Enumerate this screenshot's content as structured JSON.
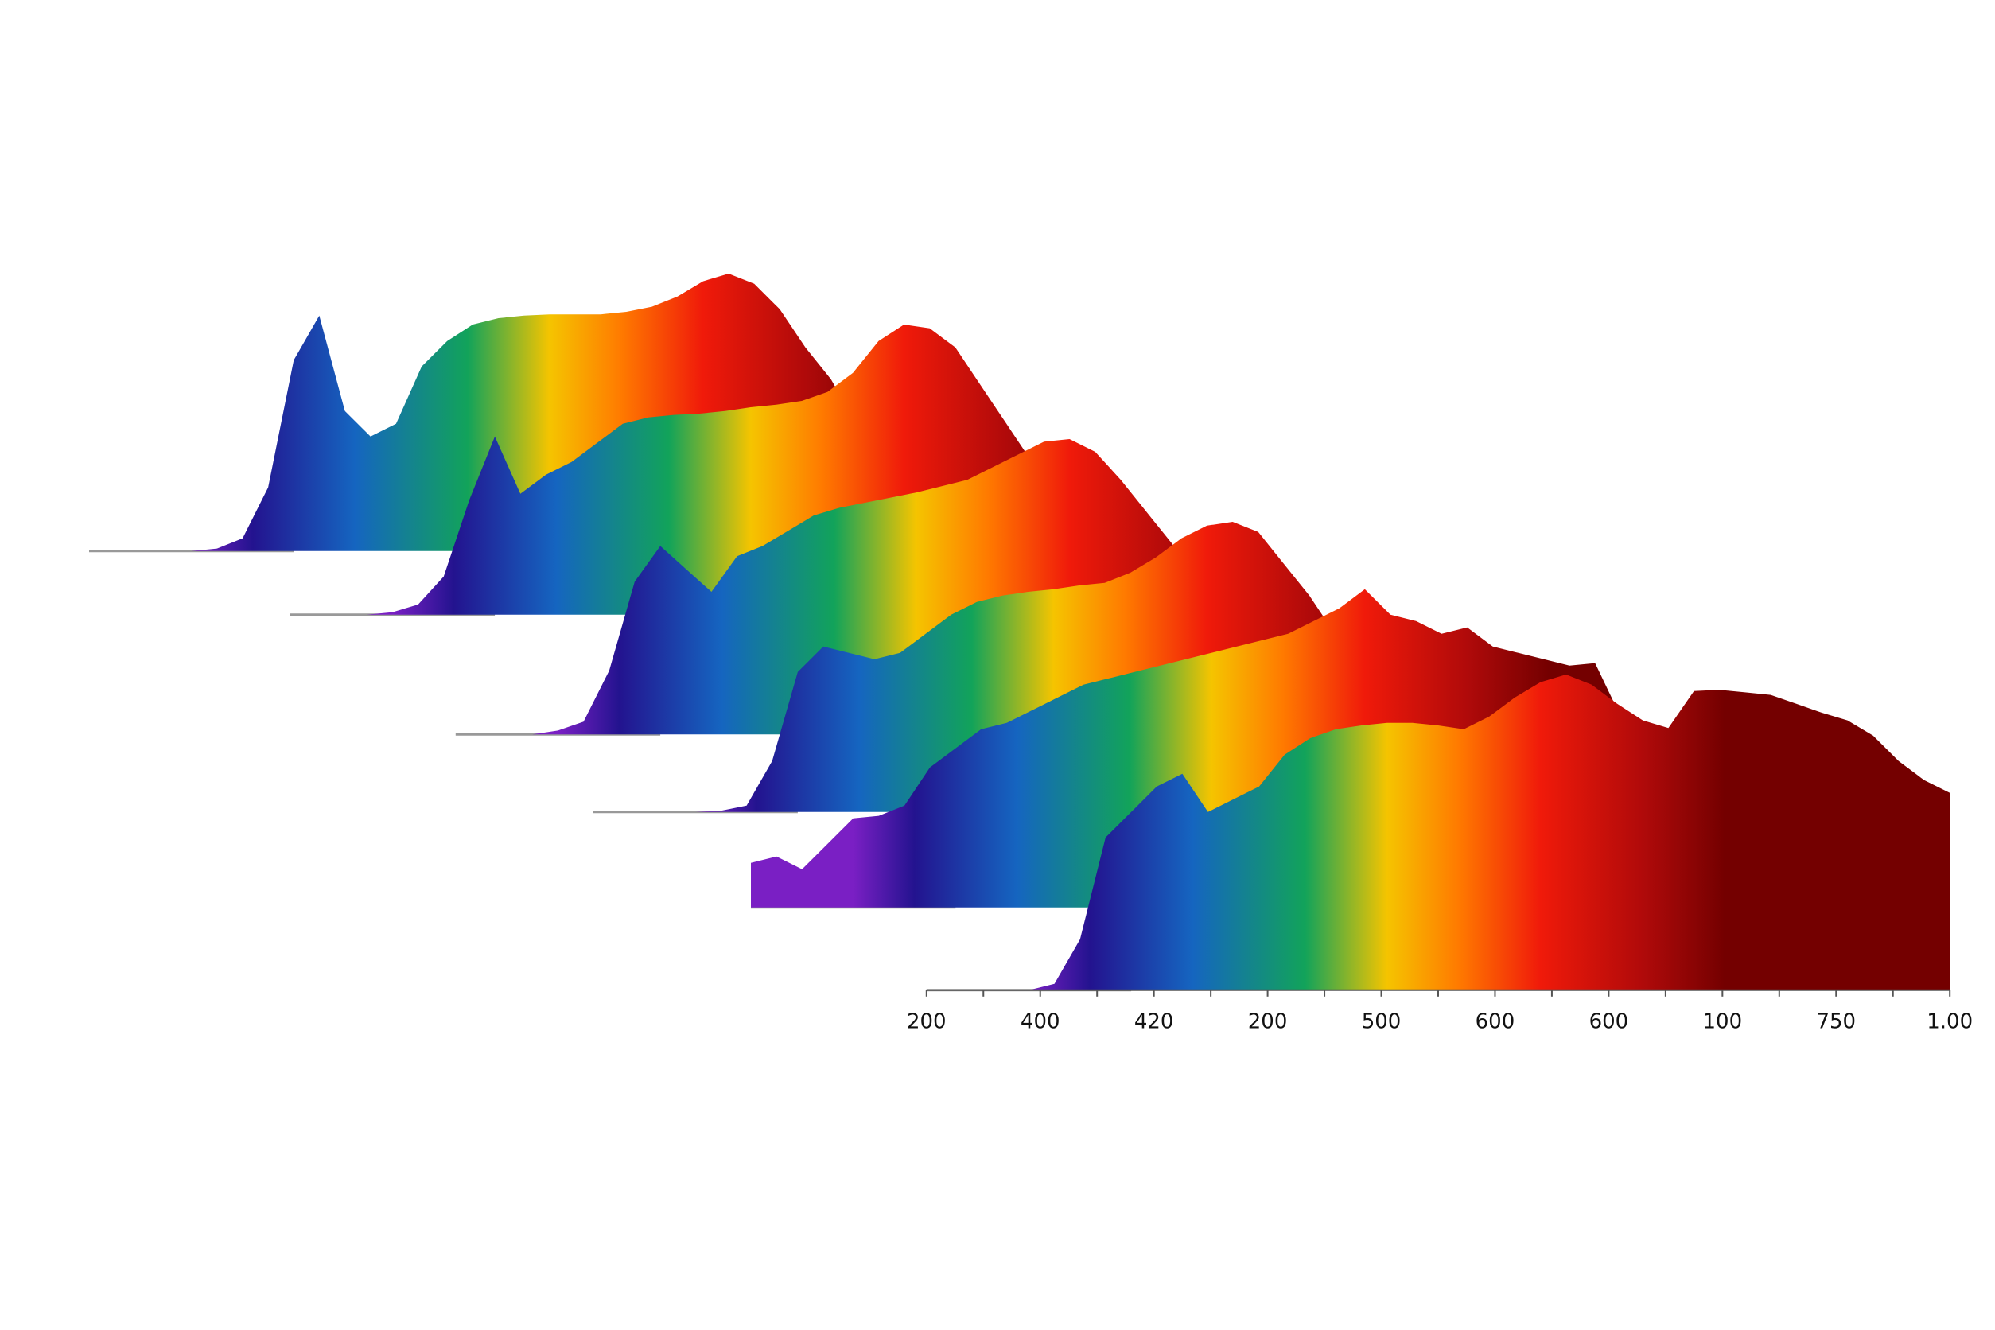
{
  "chart_data": {
    "type": "ridgeline",
    "x_tick_labels": [
      "200",
      "400",
      "420",
      "200",
      "500",
      "600",
      "600",
      "100",
      "750",
      "1.00"
    ],
    "color_stops": [
      "#7a1fc4",
      "#23138f",
      "#1565c0",
      "#12a35a",
      "#f5c400",
      "#ff7a00",
      "#f01a0a",
      "#b00a0a",
      "#740000"
    ],
    "series": [
      {
        "values": [
          0,
          0,
          0,
          0,
          0,
          2,
          10,
          50,
          150,
          185,
          110,
          90,
          100,
          145,
          165,
          178,
          183,
          185,
          186,
          186,
          186,
          188,
          192,
          200,
          212,
          218,
          210,
          190,
          160,
          135,
          100,
          70,
          40,
          20,
          8,
          2,
          0,
          0,
          0,
          0,
          0
        ]
      },
      {
        "values": [
          0,
          0,
          0,
          0,
          2,
          8,
          30,
          90,
          140,
          95,
          110,
          120,
          135,
          150,
          155,
          157,
          158,
          160,
          163,
          165,
          168,
          175,
          190,
          215,
          228,
          225,
          210,
          180,
          150,
          120,
          90,
          60,
          35,
          15,
          5,
          1,
          0,
          0,
          0,
          0,
          0
        ]
      },
      {
        "values": [
          0,
          0,
          0,
          0,
          3,
          10,
          50,
          120,
          148,
          130,
          112,
          140,
          148,
          160,
          172,
          178,
          182,
          186,
          190,
          195,
          200,
          210,
          220,
          230,
          232,
          222,
          200,
          175,
          150,
          120,
          90,
          60,
          35,
          15,
          5,
          1,
          0,
          0,
          0,
          0,
          0
        ]
      },
      {
        "values": [
          0,
          0,
          0,
          0,
          0,
          1,
          5,
          40,
          110,
          130,
          125,
          120,
          125,
          140,
          155,
          165,
          170,
          173,
          175,
          178,
          180,
          188,
          200,
          215,
          225,
          228,
          220,
          195,
          170,
          140,
          110,
          80,
          50,
          25,
          10,
          3,
          0,
          0,
          0,
          0,
          0
        ]
      },
      {
        "values": [
          35,
          40,
          30,
          50,
          70,
          72,
          80,
          110,
          125,
          140,
          145,
          155,
          165,
          175,
          180,
          185,
          190,
          195,
          200,
          205,
          210,
          215,
          225,
          235,
          250,
          230,
          225,
          215,
          220,
          205,
          200,
          195,
          190,
          192,
          150,
          100,
          60,
          30,
          10,
          2,
          0
        ]
      },
      {
        "values": [
          0,
          0,
          0,
          0,
          0,
          5,
          40,
          120,
          140,
          160,
          170,
          140,
          150,
          160,
          185,
          198,
          205,
          208,
          210,
          210,
          208,
          205,
          215,
          230,
          242,
          248,
          240,
          225,
          212,
          206,
          235,
          236,
          234,
          232,
          225,
          218,
          212,
          200,
          180,
          165,
          155
        ]
      }
    ]
  }
}
